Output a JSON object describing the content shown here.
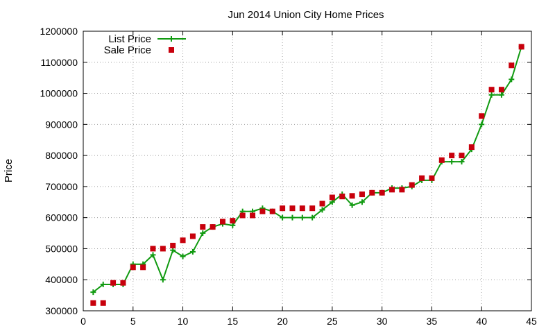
{
  "chart_data": {
    "type": "line",
    "title": "Jun 2014 Union City Home Prices",
    "xlabel": "",
    "ylabel": "Price",
    "xlim": [
      0,
      45
    ],
    "ylim": [
      300000,
      1200000
    ],
    "xticks": [
      0,
      5,
      10,
      15,
      20,
      25,
      30,
      35,
      40,
      45
    ],
    "yticks": [
      300000,
      400000,
      500000,
      600000,
      700000,
      800000,
      900000,
      1000000,
      1100000,
      1200000
    ],
    "grid": true,
    "legend_position": "top-left",
    "series": [
      {
        "name": "List Price",
        "style": "line-plus",
        "color": "#109a10",
        "x": [
          1,
          2,
          3,
          4,
          5,
          6,
          7,
          8,
          9,
          10,
          11,
          12,
          13,
          14,
          15,
          16,
          17,
          18,
          19,
          20,
          21,
          22,
          23,
          24,
          25,
          26,
          27,
          28,
          29,
          30,
          31,
          32,
          33,
          34,
          35,
          36,
          37,
          38,
          39,
          40,
          41,
          42,
          43,
          44
        ],
        "y": [
          360000,
          385000,
          385000,
          385000,
          450000,
          450000,
          480000,
          400000,
          495000,
          475000,
          490000,
          550000,
          570000,
          580000,
          575000,
          620000,
          620000,
          630000,
          620000,
          600000,
          600000,
          600000,
          600000,
          625000,
          650000,
          675000,
          640000,
          650000,
          680000,
          680000,
          695000,
          695000,
          700000,
          720000,
          720000,
          780000,
          780000,
          780000,
          820000,
          900000,
          995000,
          995000,
          1045000,
          1150000
        ]
      },
      {
        "name": "Sale Price",
        "style": "square-marker",
        "color": "#c8000c",
        "x": [
          1,
          2,
          3,
          4,
          5,
          6,
          7,
          8,
          9,
          10,
          11,
          12,
          13,
          14,
          15,
          16,
          17,
          18,
          19,
          20,
          21,
          22,
          23,
          24,
          25,
          26,
          27,
          28,
          29,
          30,
          31,
          32,
          33,
          34,
          35,
          36,
          37,
          38,
          39,
          40,
          41,
          42,
          43,
          44
        ],
        "y": [
          325000,
          325000,
          390000,
          390000,
          440000,
          440000,
          500000,
          500000,
          510000,
          527000,
          540000,
          570000,
          570000,
          587000,
          590000,
          607000,
          607000,
          620000,
          620000,
          630000,
          630000,
          630000,
          630000,
          645000,
          665000,
          668000,
          670000,
          675000,
          680000,
          680000,
          690000,
          690000,
          705000,
          727000,
          727000,
          785000,
          800000,
          800000,
          827000,
          927000,
          1012000,
          1012000,
          1090000,
          1150000
        ]
      }
    ]
  }
}
